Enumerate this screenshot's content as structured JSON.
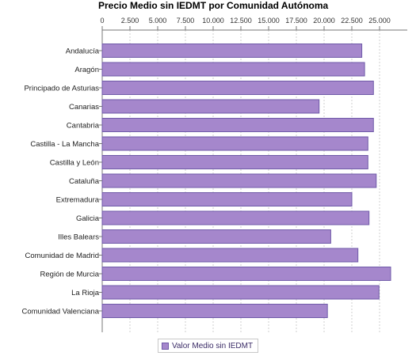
{
  "chart_data": {
    "type": "bar",
    "orientation": "horizontal",
    "title": "Precio Medio sin IEDMT por Comunidad Autónoma",
    "xlabel": "",
    "ylabel": "",
    "xlim": [
      0,
      27500
    ],
    "ticks": [
      "0",
      "2.500",
      "5.000",
      "7.500",
      "10.000",
      "12.500",
      "15.000",
      "17.500",
      "20.000",
      "22.500",
      "25.000"
    ],
    "grid": true,
    "legend_position": "bottom",
    "categories": [
      "Andalucía",
      "Aragón",
      "Principado de Asturias",
      "Canarias",
      "Cantabria",
      "Castilla - La Mancha",
      "Castilla y León",
      "Cataluña",
      "Extremadura",
      "Galicia",
      "Illes Balears",
      "Comunidad de Madrid",
      "Región de Murcia",
      "La Rioja",
      "Comunidad Valenciana"
    ],
    "series": [
      {
        "name": "Valor Medio sin IEDMT",
        "color": "#a587cc",
        "values": [
          23400,
          23650,
          24450,
          19550,
          24450,
          23950,
          23950,
          24700,
          22500,
          24050,
          20600,
          23050,
          26000,
          24950,
          20300
        ]
      }
    ]
  }
}
